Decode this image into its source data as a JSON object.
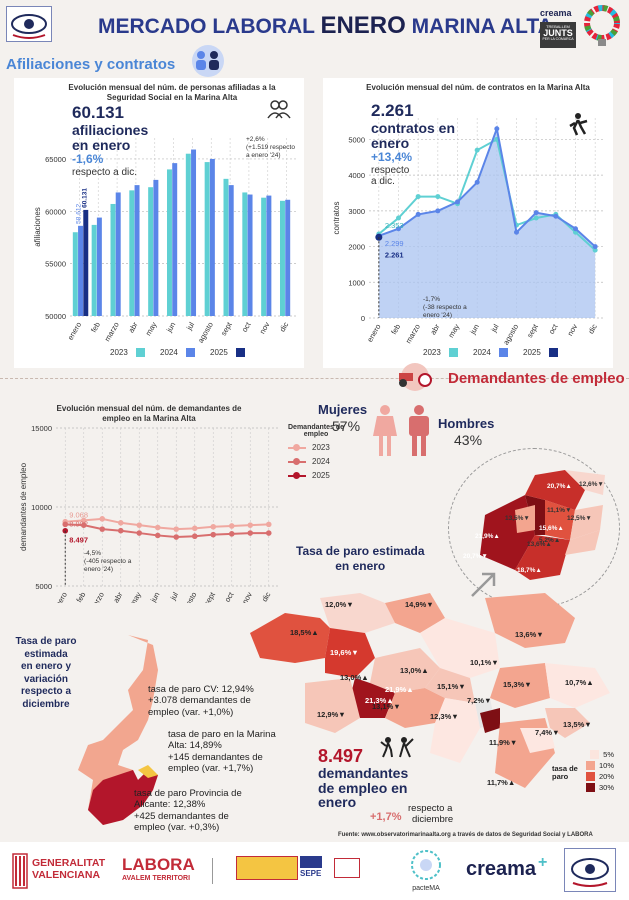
{
  "header": {
    "title_part1": "MERCADO LABORAL",
    "title_part2": "ENERO",
    "title_part3": "MARINA ALTA",
    "creama_small": "creama",
    "junts_line1": "TREBALLEM",
    "junts_line2": "JUNTS",
    "junts_line3": "PER LA COMARCA"
  },
  "afiliaciones": {
    "section_title": "Afiliaciones y contratos",
    "chart_title": "Evolución mensual del núm. de personas afiliadas a la Seguridad Social en la Marina Alta",
    "headline_value": "60.131",
    "headline_l1": "afiliaciones",
    "headline_l2": "en enero",
    "var_pct": "-1,6%",
    "var_text": "respecto a dic.",
    "annot_l1": "+2,6%",
    "annot_l2": "(+1.519 respecto",
    "annot_l3": "a enero '24)",
    "value_labels": [
      "58.612",
      "60.131"
    ]
  },
  "contratos": {
    "chart_title": "Evolución mensual del núm. de contratos en la Marina Alta",
    "headline_value": "2.261",
    "headline_l1": "contratos en",
    "headline_l2": "enero",
    "var_pct": "+13,4%",
    "var_text_l1": "respecto",
    "var_text_l2": "a dic.",
    "annot_l1": "-1,7%",
    "annot_l2": "(-38 respecto a",
    "annot_l3": "enero '24)",
    "value_labels": [
      "2.353",
      "2.299",
      "2.261"
    ]
  },
  "demandantes": {
    "section_title": "Demandantes de empleo",
    "chart_title": "Evolución mensual del núm. de demandantes de empleo en la Marina Alta",
    "legend_title_l1": "Demandantes de",
    "legend_title_l2": "empleo",
    "mujeres_label": "Mujeres",
    "mujeres_pct": "57%",
    "hombres_label": "Hombres",
    "hombres_pct": "43%",
    "annot_l1": "-4,5%",
    "annot_l2": "(-405 respecto a",
    "annot_l3": "enero '24)",
    "value_labels": [
      "9.068",
      "8.902",
      "8.497"
    ]
  },
  "tasa": {
    "map_title_l1": "Tasa de paro estimada",
    "map_title_l2": "en enero",
    "left_title": [
      "Tasa de paro",
      "estimada",
      "en enero y",
      "variación",
      "respecto a",
      "diciembre"
    ],
    "cv_l1": "tasa de paro CV: 12,94%",
    "cv_l2": "+3.078 demandantes de",
    "cv_l3": "empleo (var. +1,0%)",
    "ma_l1": "tasa de paro en la Marina",
    "ma_l2": "Alta: 14,89%",
    "ma_l3": "+145 demandantes de",
    "ma_l4": "empleo (var. +1,7%)",
    "al_l1": "tasa de paro Provincia de",
    "al_l2": "Alicante: 12,38%",
    "al_l3": "+425 demandantes de",
    "al_l4": "empleo (var. +0,3%)",
    "dem_value_l1": "8.497",
    "dem_value_l2": "demandantes",
    "dem_value_l3": "de empleo en",
    "dem_value_l4": "enero",
    "dem_var_pct": "+1,7%",
    "dem_var_text_l1": "respecto a",
    "dem_var_text_l2": "diciembre",
    "legend_title_l1": "tasa de",
    "legend_title_l2": "paro",
    "legend_items": [
      "5%",
      "10%",
      "20%",
      "30%"
    ],
    "legend_colors": [
      "#fbe5de",
      "#f3a58f",
      "#e0523f",
      "#7e0f14"
    ],
    "map_labels": [
      "12,0%▼",
      "14,9%▼",
      "18,5%▲",
      "19,6%▼",
      "13,6%▼",
      "10,1%▼",
      "13,0%▲",
      "13,0%▲",
      "21,9%▲",
      "21,3%▲",
      "15,1%▼",
      "13,1%▼",
      "12,9%▼",
      "12,3%▼",
      "7,2%▼",
      "15,3%▼",
      "10,7%▲",
      "11,9%▼",
      "7,4%▼",
      "11,7%▲",
      "13,5%▼"
    ],
    "zoom_labels": [
      "20,7%▲",
      "12,6%▼",
      "11,1%▼",
      "13,5%▼",
      "12,5%▼",
      "21,9%▲",
      "15,6%▲",
      "20,7%▼",
      "18,7%▲",
      "13,6%▲",
      "5,2%▲"
    ]
  },
  "footer": {
    "source": "Fuente: www.observatorimarinaalta.org a través de datos de Seguridad Social y LABORA",
    "gv_l1": "GENERALITAT",
    "gv_l2": "VALENCIANA",
    "labora_l1": "LABORA",
    "labora_l2": "AVALEM TERRITORI",
    "sepe": "SEPE",
    "pacte": "pacteMA",
    "creama": "creama"
  },
  "chart_data": [
    {
      "type": "bar",
      "title": "Evolución mensual del núm. de personas afiliadas a la Seguridad Social en la Marina Alta",
      "ylabel": "afiliaciones",
      "ylim": [
        50000,
        67000
      ],
      "yticks": [
        "50000",
        "55000",
        "60000",
        "65000"
      ],
      "categories": [
        "enero",
        "feb",
        "marzo",
        "abr",
        "may",
        "jun",
        "jul",
        "agosto",
        "sept",
        "oct",
        "nov",
        "dic"
      ],
      "series": [
        {
          "name": "2023",
          "color": "#5fd0d3",
          "values": [
            58000,
            58700,
            60700,
            62000,
            62300,
            64000,
            65500,
            64700,
            63100,
            61800,
            61300,
            61000
          ]
        },
        {
          "name": "2024",
          "color": "#5b85e8",
          "values": [
            58612,
            59400,
            61800,
            62500,
            63000,
            64600,
            65900,
            65000,
            62500,
            61600,
            61500,
            61100
          ]
        },
        {
          "name": "2025",
          "color": "#182f85",
          "values": [
            60131,
            null,
            null,
            null,
            null,
            null,
            null,
            null,
            null,
            null,
            null,
            null
          ]
        }
      ],
      "grid": true
    },
    {
      "type": "area",
      "title": "Evolución mensual del núm. de contratos en la Marina Alta",
      "ylabel": "contratos",
      "ylim": [
        0,
        5600
      ],
      "yticks": [
        "0",
        "1000",
        "2000",
        "3000",
        "4000",
        "5000"
      ],
      "categories": [
        "enero",
        "feb",
        "marzo",
        "abr",
        "may",
        "jun",
        "jul",
        "agosto",
        "sept",
        "oct",
        "nov",
        "dic"
      ],
      "series": [
        {
          "name": "2023",
          "color": "#5fd0d3",
          "values": [
            2353,
            2800,
            3400,
            3400,
            3200,
            4700,
            5000,
            2600,
            2800,
            2900,
            2400,
            1900
          ]
        },
        {
          "name": "2024",
          "color": "#5b85e8",
          "values": [
            2299,
            2500,
            2900,
            3000,
            3250,
            3800,
            5300,
            2400,
            2950,
            2850,
            2500,
            2000
          ]
        },
        {
          "name": "2025",
          "color": "#182f85",
          "values": [
            2261,
            null,
            null,
            null,
            null,
            null,
            null,
            null,
            null,
            null,
            null,
            null
          ]
        }
      ],
      "grid": true
    },
    {
      "type": "line",
      "title": "Evolución mensual del núm. de demandantes de empleo en la Marina Alta",
      "ylabel": "demandantes de empleo",
      "ylim": [
        5000,
        15000
      ],
      "yticks": [
        "5000",
        "10000",
        "15000"
      ],
      "categories": [
        "enero",
        "feb",
        "marzo",
        "abr",
        "may",
        "jun",
        "jul",
        "agosto",
        "sept",
        "oct",
        "nov",
        "dic"
      ],
      "series": [
        {
          "name": "2023",
          "color": "#f0a8a0",
          "values": [
            9068,
            9150,
            9250,
            9000,
            8850,
            8700,
            8600,
            8650,
            8750,
            8800,
            8850,
            8900
          ]
        },
        {
          "name": "2024",
          "color": "#d86e6e",
          "values": [
            8902,
            8850,
            8600,
            8500,
            8350,
            8200,
            8100,
            8150,
            8250,
            8300,
            8350,
            8350
          ]
        },
        {
          "name": "2025",
          "color": "#b3162b",
          "values": [
            8497,
            null,
            null,
            null,
            null,
            null,
            null,
            null,
            null,
            null,
            null,
            null
          ]
        }
      ],
      "grid": true
    }
  ]
}
